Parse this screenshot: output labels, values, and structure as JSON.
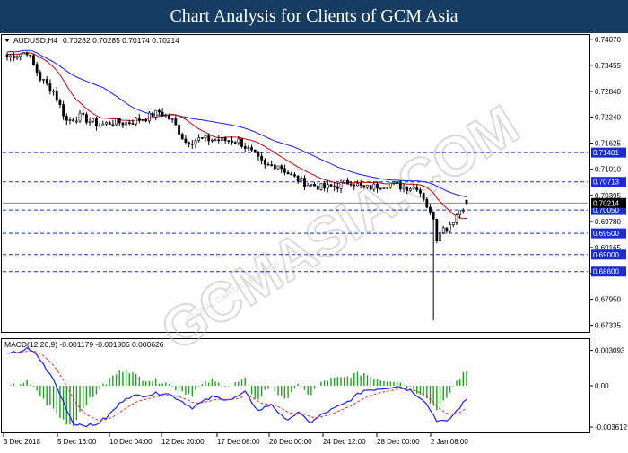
{
  "header": {
    "title": "Chart Analysis for Clients of GCM Asia"
  },
  "watermark": {
    "text": "GCMASIA.COM",
    "subtext": "GLOBAL CAPITAL MARKETS",
    "color": "#c8c8c8"
  },
  "colors": {
    "bull": "#00b000",
    "bear": "#d00000",
    "ma_fast": "#d00000",
    "ma_slow": "#1a1aff",
    "level_line": "#1a2bd6",
    "level_tag": "#1a2bd6",
    "current_tag": "#000000",
    "macd_line": "#1a1aff",
    "macd_signal": "#e03030",
    "macd_hist": "#1fa01f"
  },
  "chart_data": [
    {
      "type": "candlestick",
      "symbol_label": "AUDUSD,H4",
      "ohlc_label": [
        "0.70282",
        "0.70285",
        "0.70174",
        "0.70214"
      ],
      "ylim": [
        0.672,
        0.7415
      ],
      "y_ticks": [
        "0.74070",
        "0.73455",
        "0.72840",
        "0.72240",
        "0.71625",
        "0.71010",
        "0.70395",
        "0.69780",
        "0.69165",
        "0.68565",
        "0.67950",
        "0.67335"
      ],
      "levels": [
        {
          "label": "0.71401",
          "value": 0.71401
        },
        {
          "label": "0.70713",
          "value": 0.70713
        },
        {
          "label": "0.70050",
          "value": 0.7005
        },
        {
          "label": "0.69500",
          "value": 0.695
        },
        {
          "label": "0.69000",
          "value": 0.69
        },
        {
          "label": "0.68600",
          "value": 0.686
        }
      ],
      "current": {
        "label": "0.70214",
        "value": 0.70214
      },
      "x_labels": [
        "3 Dec 2018",
        "5 Dec 16:00",
        "10 Dec 04:00",
        "12 Dec 20:00",
        "17 Dec 08:00",
        "20 Dec 00:00",
        "24 Dec 12:00",
        "28 Dec 00:00",
        "2 Jan 08:00"
      ],
      "close_anchors": [
        [
          0,
          0.7365
        ],
        [
          6,
          0.7378
        ],
        [
          10,
          0.7315
        ],
        [
          14,
          0.7285
        ],
        [
          18,
          0.7215
        ],
        [
          22,
          0.7225
        ],
        [
          28,
          0.7205
        ],
        [
          32,
          0.7212
        ],
        [
          36,
          0.721
        ],
        [
          42,
          0.7222
        ],
        [
          46,
          0.7236
        ],
        [
          50,
          0.7215
        ],
        [
          54,
          0.7165
        ],
        [
          58,
          0.7172
        ],
        [
          64,
          0.717
        ],
        [
          70,
          0.7168
        ],
        [
          74,
          0.714
        ],
        [
          78,
          0.7108
        ],
        [
          82,
          0.7112
        ],
        [
          86,
          0.7085
        ],
        [
          90,
          0.7068
        ],
        [
          96,
          0.7057
        ],
        [
          100,
          0.7062
        ],
        [
          104,
          0.7073
        ],
        [
          108,
          0.7055
        ],
        [
          112,
          0.7062
        ],
        [
          116,
          0.7068
        ],
        [
          120,
          0.7058
        ],
        [
          124,
          0.706
        ],
        [
          126,
          0.7035
        ],
        [
          128,
          0.6995
        ],
        [
          129,
          0.699
        ],
        [
          130,
          0.6938
        ],
        [
          131,
          0.696
        ],
        [
          133,
          0.6962
        ],
        [
          135,
          0.6982
        ],
        [
          137,
          0.7005
        ],
        [
          139,
          0.7021
        ]
      ],
      "spike": {
        "index": 129,
        "low": 0.6745,
        "open": 0.6995,
        "close": 0.692
      }
    },
    {
      "type": "macd",
      "label": "MACD(12,26,9) -0.001179 -0.001806 0.000626",
      "ylim": [
        -0.004,
        0.004
      ],
      "y_ticks": [
        "0.003093",
        "0.00",
        "-0.003612"
      ],
      "macd_anchors": [
        [
          0,
          0.0027
        ],
        [
          6,
          0.0032
        ],
        [
          9,
          0.0027
        ],
        [
          14,
          0.0005
        ],
        [
          20,
          -0.0033
        ],
        [
          26,
          -0.0035
        ],
        [
          30,
          -0.0028
        ],
        [
          36,
          -0.001
        ],
        [
          42,
          -0.0008
        ],
        [
          48,
          -0.0006
        ],
        [
          52,
          -0.0012
        ],
        [
          56,
          -0.0019
        ],
        [
          62,
          -0.001
        ],
        [
          68,
          -0.0012
        ],
        [
          72,
          -0.0006
        ],
        [
          76,
          -0.0022
        ],
        [
          80,
          -0.0016
        ],
        [
          84,
          -0.003
        ],
        [
          88,
          -0.0024
        ],
        [
          92,
          -0.0032
        ],
        [
          96,
          -0.0024
        ],
        [
          102,
          -0.0016
        ],
        [
          108,
          -0.0004
        ],
        [
          114,
          -0.0002
        ],
        [
          118,
          0.0
        ],
        [
          122,
          -0.0004
        ],
        [
          126,
          -0.0012
        ],
        [
          130,
          -0.003
        ],
        [
          133,
          -0.0032
        ],
        [
          136,
          -0.0022
        ],
        [
          139,
          -0.0012
        ]
      ]
    }
  ]
}
